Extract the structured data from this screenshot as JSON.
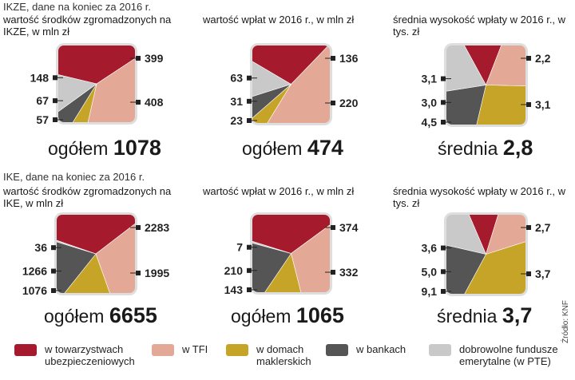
{
  "colors": {
    "towarzystwa": "#a51a2c",
    "tfi": "#e4a896",
    "maklerskie": "#c6a428",
    "banki": "#555555",
    "ptw": "#c9c9c9",
    "frame": "#dedede"
  },
  "sections": {
    "ikze": "IKZE, dane na koniec za 2016 r.",
    "ike": "IKE, dane na koniec za 2016 r."
  },
  "chart_data": [
    {
      "type": "pie",
      "group": "IKZE",
      "title": "wartość środków zgromadzonych na IKZE, w mln zł",
      "series": [
        {
          "name": "w towarzystwach ubezpieczeniowych",
          "value": 399,
          "label": "399"
        },
        {
          "name": "w TFI",
          "value": 408,
          "label": "408"
        },
        {
          "name": "w domach maklerskich",
          "value": 57,
          "label": "57"
        },
        {
          "name": "w bankach",
          "value": 67,
          "label": "67"
        },
        {
          "name": "dobrowolne fundusze emerytalne (w PTE)",
          "value": 148,
          "label": "148"
        }
      ],
      "total_label": "ogółem",
      "total": "1078"
    },
    {
      "type": "pie",
      "group": "IKZE",
      "title": "wartość wpłat w 2016 r., w mln zł",
      "series": [
        {
          "name": "w towarzystwach ubezpieczeniowych",
          "value": 136,
          "label": "136"
        },
        {
          "name": "w TFI",
          "value": 220,
          "label": "220"
        },
        {
          "name": "w domach maklerskich",
          "value": 23,
          "label": "23"
        },
        {
          "name": "w bankach",
          "value": 31,
          "label": "31"
        },
        {
          "name": "dobrowolne fundusze emerytalne (w PTE)",
          "value": 63,
          "label": "63"
        }
      ],
      "total_label": "ogółem",
      "total": "474"
    },
    {
      "type": "pie",
      "group": "IKZE",
      "title": "średnia wysokość wpłaty w 2016 r., w tys. zł",
      "series": [
        {
          "name": "w towarzystwach ubezpieczeniowych",
          "value": 2.2,
          "label": "2,2"
        },
        {
          "name": "w TFI",
          "value": 3.1,
          "label": "3,1"
        },
        {
          "name": "w domach maklerskich",
          "value": 4.5,
          "label": "4,5"
        },
        {
          "name": "w bankach",
          "value": 3.0,
          "label": "3,0"
        },
        {
          "name": "dobrowolne fundusze emerytalne (w PTE)",
          "value": 3.1,
          "label": "3,1"
        }
      ],
      "total_label": "średnia",
      "total": "2,8"
    },
    {
      "type": "pie",
      "group": "IKE",
      "title": "wartość środków zgromadzonych na IKE, w mln zł",
      "series": [
        {
          "name": "w towarzystwach ubezpieczeniowych",
          "value": 2283,
          "label": "2283"
        },
        {
          "name": "w TFI",
          "value": 1995,
          "label": "1995"
        },
        {
          "name": "w domach maklerskich",
          "value": 1076,
          "label": "1076"
        },
        {
          "name": "w bankach",
          "value": 1266,
          "label": "1266"
        },
        {
          "name": "dobrowolne fundusze emerytalne (w PTE)",
          "value": 36,
          "label": "36"
        }
      ],
      "total_label": "ogółem",
      "total": "6655"
    },
    {
      "type": "pie",
      "group": "IKE",
      "title": "wartość wpłat w 2016 r., w mln zł",
      "series": [
        {
          "name": "w towarzystwach ubezpieczeniowych",
          "value": 374,
          "label": "374"
        },
        {
          "name": "w TFI",
          "value": 332,
          "label": "332"
        },
        {
          "name": "w domach maklerskich",
          "value": 143,
          "label": "143"
        },
        {
          "name": "w bankach",
          "value": 210,
          "label": "210"
        },
        {
          "name": "dobrowolne fundusze emerytalne (w PTE)",
          "value": 7,
          "label": "7"
        }
      ],
      "total_label": "ogółem",
      "total": "1065"
    },
    {
      "type": "pie",
      "group": "IKE",
      "title": "średnia wysokość wpłaty w 2016 r., w tys. zł",
      "series": [
        {
          "name": "w towarzystwach ubezpieczeniowych",
          "value": 2.7,
          "label": "2,7"
        },
        {
          "name": "w TFI",
          "value": 3.7,
          "label": "3,7"
        },
        {
          "name": "w domach maklerskich",
          "value": 9.1,
          "label": "9,1"
        },
        {
          "name": "w bankach",
          "value": 5.0,
          "label": "5,0"
        },
        {
          "name": "dobrowolne fundusze emerytalne (w PTE)",
          "value": 3.6,
          "label": "3,6"
        }
      ],
      "total_label": "średnia",
      "total": "3,7"
    }
  ],
  "legend": [
    {
      "label": "w towarzystwach\nubezpieczeniowych",
      "color": "#a51a2c"
    },
    {
      "label": "w TFI",
      "color": "#e4a896"
    },
    {
      "label": "w domach\nmaklerskich",
      "color": "#c6a428"
    },
    {
      "label": "w bankach",
      "color": "#555555"
    },
    {
      "label": "dobrowolne fundusze\nemerytalne (w PTE)",
      "color": "#c9c9c9"
    }
  ],
  "source": "Źródło: KNF"
}
